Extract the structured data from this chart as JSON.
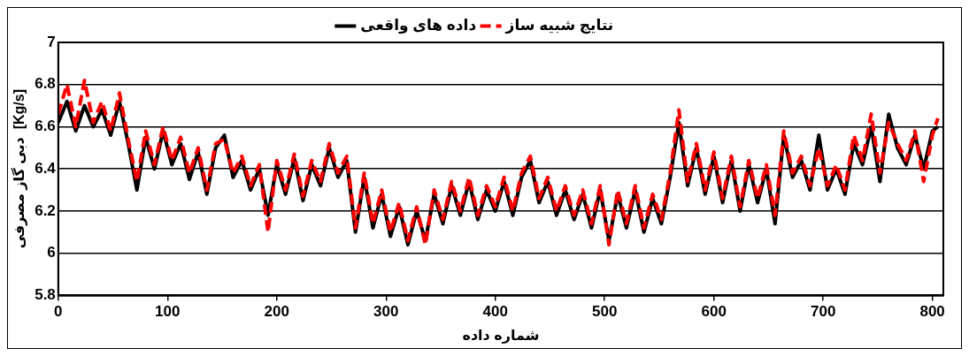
{
  "chart_data": {
    "type": "line",
    "xlabel": "شماره داده",
    "ylabel": "دبی گاز مصرفی  [Kg/s]",
    "x": [
      0,
      8,
      16,
      24,
      32,
      40,
      48,
      56,
      64,
      72,
      80,
      88,
      96,
      104,
      112,
      120,
      128,
      136,
      144,
      152,
      160,
      168,
      176,
      184,
      192,
      200,
      208,
      216,
      224,
      232,
      240,
      248,
      256,
      264,
      272,
      280,
      288,
      296,
      304,
      312,
      320,
      328,
      336,
      344,
      352,
      360,
      368,
      376,
      384,
      392,
      400,
      408,
      416,
      424,
      432,
      440,
      448,
      456,
      464,
      472,
      480,
      488,
      496,
      504,
      512,
      520,
      528,
      536,
      544,
      552,
      560,
      568,
      576,
      584,
      592,
      600,
      608,
      616,
      624,
      632,
      640,
      648,
      656,
      664,
      672,
      680,
      688,
      696,
      704,
      712,
      720,
      728,
      736,
      744,
      752,
      760,
      768,
      776,
      784,
      792,
      800,
      805
    ],
    "series": [
      {
        "name": "داده های واقعی",
        "color": "#000000",
        "line_style": "solid",
        "values": [
          6.62,
          6.72,
          6.58,
          6.7,
          6.6,
          6.68,
          6.56,
          6.72,
          6.52,
          6.3,
          6.55,
          6.4,
          6.58,
          6.42,
          6.52,
          6.35,
          6.48,
          6.28,
          6.5,
          6.56,
          6.36,
          6.44,
          6.3,
          6.4,
          6.18,
          6.42,
          6.28,
          6.45,
          6.25,
          6.42,
          6.32,
          6.5,
          6.36,
          6.44,
          6.1,
          6.36,
          6.12,
          6.28,
          6.08,
          6.22,
          6.04,
          6.2,
          6.06,
          6.28,
          6.14,
          6.32,
          6.18,
          6.34,
          6.16,
          6.3,
          6.2,
          6.34,
          6.18,
          6.36,
          6.44,
          6.24,
          6.34,
          6.18,
          6.3,
          6.16,
          6.28,
          6.12,
          6.3,
          6.06,
          6.28,
          6.12,
          6.3,
          6.1,
          6.26,
          6.14,
          6.36,
          6.62,
          6.32,
          6.5,
          6.28,
          6.46,
          6.24,
          6.44,
          6.2,
          6.42,
          6.24,
          6.4,
          6.14,
          6.56,
          6.36,
          6.44,
          6.3,
          6.56,
          6.3,
          6.4,
          6.28,
          6.52,
          6.42,
          6.6,
          6.34,
          6.66,
          6.5,
          6.42,
          6.56,
          6.4,
          6.58,
          6.6
        ]
      },
      {
        "name": "نتایج شبیه ساز",
        "color": "#ff0000",
        "line_style": "dashed",
        "values": [
          6.66,
          6.8,
          6.6,
          6.82,
          6.62,
          6.72,
          6.58,
          6.76,
          6.54,
          6.34,
          6.58,
          6.42,
          6.6,
          6.44,
          6.55,
          6.38,
          6.5,
          6.3,
          6.52,
          6.54,
          6.38,
          6.46,
          6.32,
          6.42,
          6.1,
          6.44,
          6.3,
          6.47,
          6.27,
          6.44,
          6.34,
          6.52,
          6.38,
          6.46,
          6.12,
          6.38,
          6.14,
          6.3,
          6.1,
          6.24,
          6.06,
          6.22,
          6.04,
          6.3,
          6.16,
          6.34,
          6.2,
          6.36,
          6.18,
          6.32,
          6.22,
          6.36,
          6.2,
          6.38,
          6.46,
          6.26,
          6.36,
          6.2,
          6.32,
          6.18,
          6.3,
          6.14,
          6.32,
          6.04,
          6.3,
          6.14,
          6.32,
          6.12,
          6.28,
          6.16,
          6.38,
          6.68,
          6.34,
          6.52,
          6.3,
          6.48,
          6.26,
          6.46,
          6.22,
          6.44,
          6.26,
          6.42,
          6.18,
          6.58,
          6.38,
          6.46,
          6.32,
          6.5,
          6.32,
          6.42,
          6.3,
          6.56,
          6.44,
          6.66,
          6.38,
          6.62,
          6.52,
          6.44,
          6.58,
          6.34,
          6.56,
          6.64
        ]
      }
    ],
    "xlim": [
      0,
      810
    ],
    "xticks": [
      0,
      100,
      200,
      300,
      400,
      500,
      600,
      700,
      800
    ],
    "ylim": [
      5.8,
      7
    ],
    "yticks": [
      5.8,
      6,
      6.2,
      6.4,
      6.6,
      6.8,
      7
    ],
    "grid": "y",
    "legend": "top",
    "marker": "none"
  }
}
